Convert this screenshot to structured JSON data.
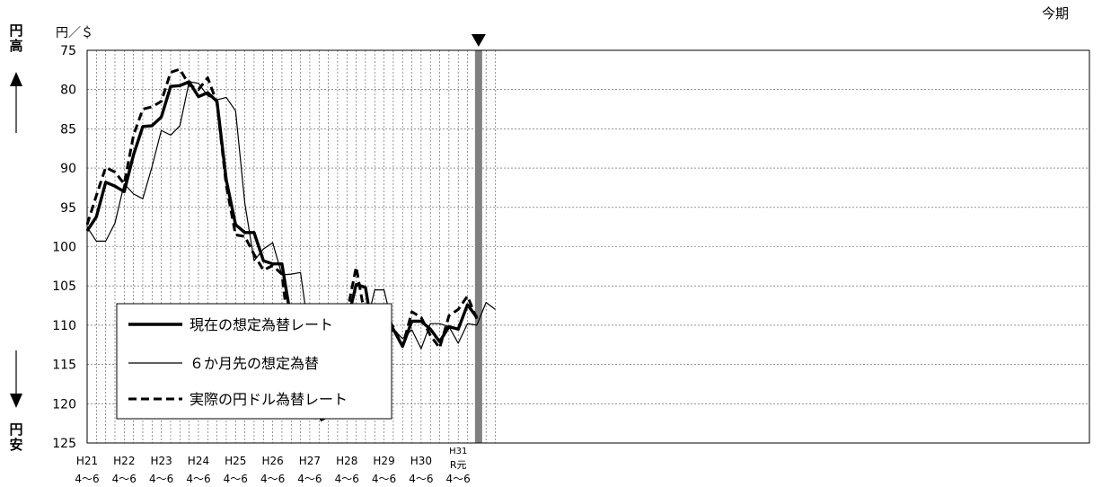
{
  "labels": {
    "en_high": "円\n高",
    "en_low": "円\n安",
    "unit": "円／＄",
    "current_period": "今期"
  },
  "chart_data": {
    "type": "line",
    "ylim": [
      75,
      125
    ],
    "y_inverted": true,
    "yticks": [
      75,
      80,
      85,
      90,
      95,
      100,
      105,
      110,
      115,
      120,
      125
    ],
    "grid": true,
    "legend_position": "bottom-left",
    "x_axis_labels": [
      {
        "era": "H21",
        "months": "4～6"
      },
      {
        "era": "H22",
        "months": "4～6"
      },
      {
        "era": "H23",
        "months": "4～6"
      },
      {
        "era": "H24",
        "months": "4～6"
      },
      {
        "era": "H25",
        "months": "4～6"
      },
      {
        "era": "H26",
        "months": "4～6"
      },
      {
        "era": "H27",
        "months": "4～6"
      },
      {
        "era": "H28",
        "months": "4～6"
      },
      {
        "era": "H29",
        "months": "4～6"
      },
      {
        "era": "H30",
        "months": "4～6"
      },
      {
        "era": "H31\nR元",
        "months": "4～6"
      }
    ],
    "n_quarters": 45,
    "current_quarter_index": 42,
    "series": [
      {
        "name": "現在の想定為替レート",
        "style": "solid-thick",
        "values": [
          98.0,
          96.2,
          91.8,
          92.3,
          93.0,
          88.3,
          84.7,
          84.6,
          83.5,
          79.6,
          79.5,
          79.0,
          80.9,
          80.4,
          81.5,
          91.5,
          97.2,
          98.2,
          98.2,
          101.8,
          102.2,
          102.2,
          109.4,
          115.3,
          118.8,
          121.7,
          119.8,
          118.8,
          109.8,
          104.8,
          105.2,
          112.3,
          111.5,
          110.5,
          112.7,
          109.5,
          109.5,
          110.5,
          112.1,
          110.2,
          110.5,
          107.4,
          109.0
        ]
      },
      {
        "name": "６か月先の想定為替",
        "style": "solid-thin",
        "values": [
          97.5,
          99.3,
          99.3,
          97.0,
          92.0,
          93.3,
          93.9,
          89.8,
          85.2,
          85.8,
          84.6,
          79.0,
          79.2,
          80.8,
          81.3,
          81.0,
          82.7,
          94.5,
          101.8,
          100.3,
          99.5,
          103.6,
          103.5,
          103.3,
          111.7,
          116.5,
          120.0,
          121.9,
          119.8,
          118.8,
          110.5,
          105.5,
          105.5,
          110.5,
          111.7,
          110.6,
          113.0,
          109.8,
          109.8,
          110.2,
          112.3,
          109.8,
          110.0,
          107.1,
          108.0
        ]
      },
      {
        "name": "実際の円ドル為替レート",
        "style": "dashed",
        "values": [
          97.2,
          93.5,
          89.9,
          90.5,
          92.0,
          85.8,
          82.5,
          82.2,
          81.5,
          77.8,
          77.4,
          79.4,
          80.0,
          78.5,
          81.7,
          92.2,
          98.5,
          98.7,
          101.0,
          103.0,
          102.4,
          103.5,
          113.5,
          119.0,
          121.0,
          122.2,
          121.6,
          116.0,
          108.5,
          102.6,
          109.2,
          113.7,
          111.2,
          110.2,
          112.7,
          108.3,
          109.0,
          111.3,
          112.9,
          108.8,
          108.0,
          106.3,
          109.2
        ]
      }
    ]
  }
}
